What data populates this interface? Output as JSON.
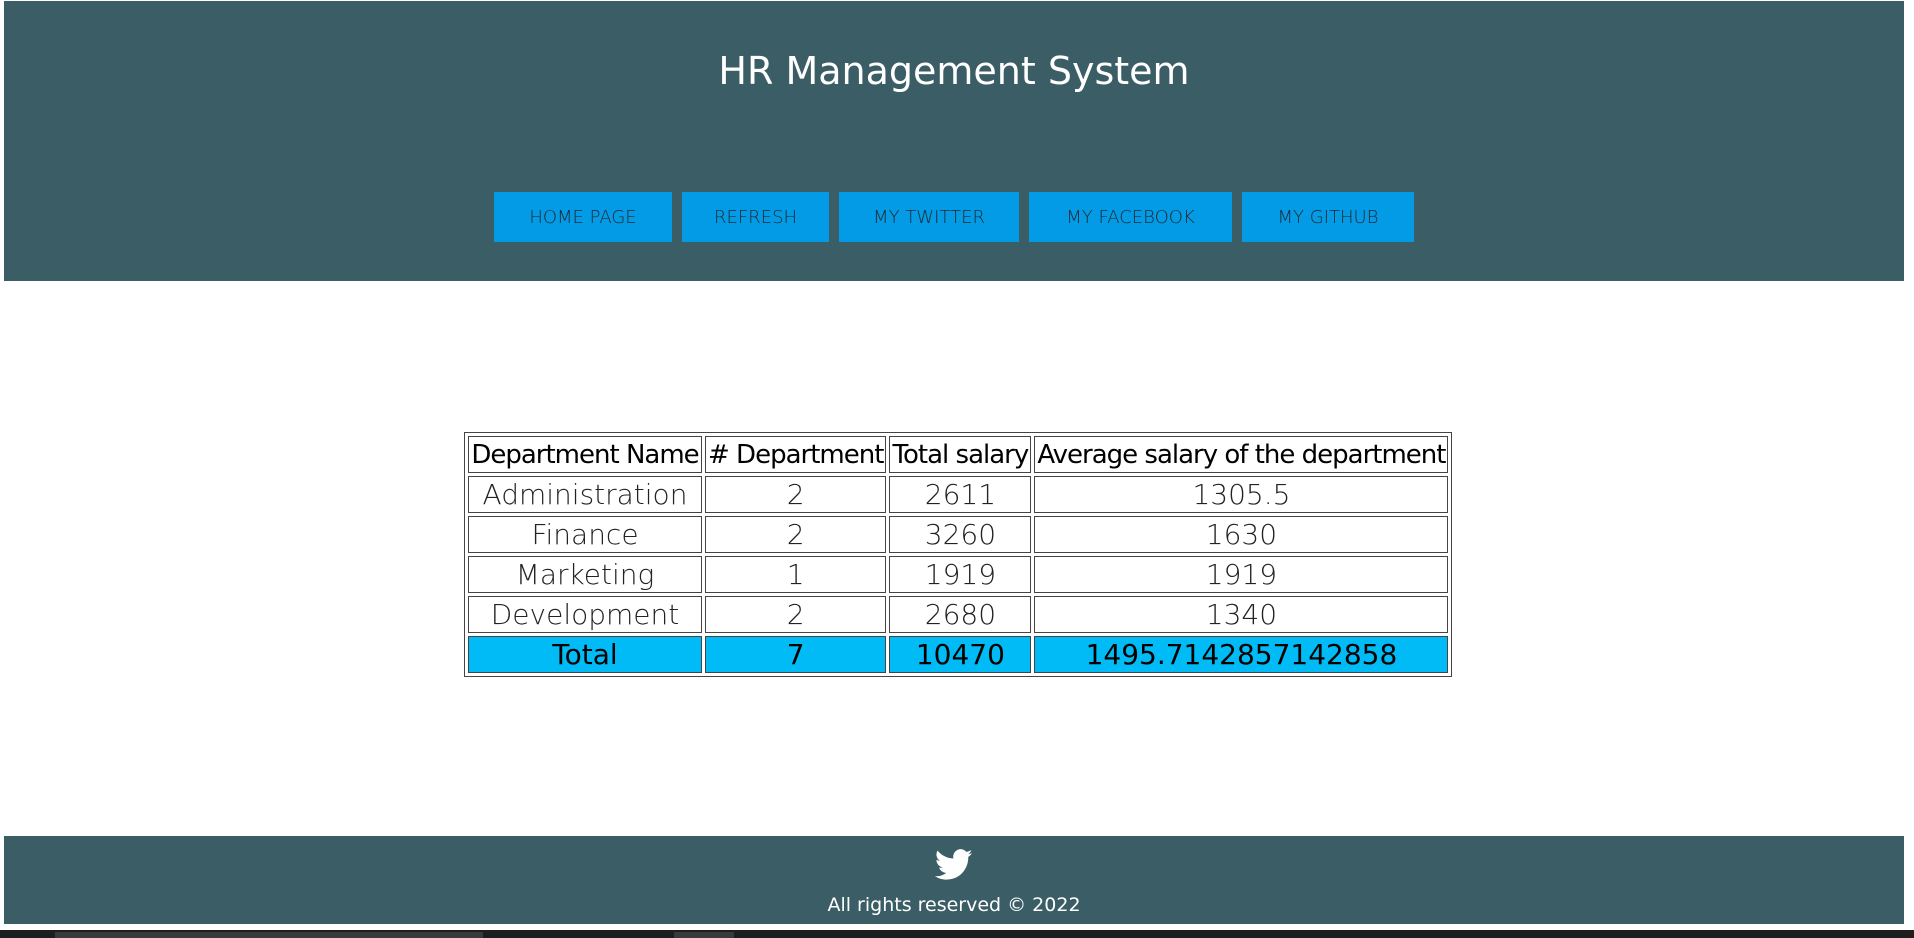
{
  "header": {
    "title": "HR Management System",
    "nav": [
      {
        "label": "HOME PAGE"
      },
      {
        "label": "REFRESH"
      },
      {
        "label": "MY TWITTER"
      },
      {
        "label": "MY FACEBOOK"
      },
      {
        "label": "MY GITHUB"
      }
    ]
  },
  "table": {
    "headers": [
      "Department Name",
      "# Department",
      "Total salary",
      "Average salary of the department"
    ],
    "rows": [
      [
        "Administration",
        "2",
        "2611",
        "1305.5"
      ],
      [
        "Finance",
        "2",
        "3260",
        "1630"
      ],
      [
        "Marketing",
        "1",
        "1919",
        "1919"
      ],
      [
        "Development",
        "2",
        "2680",
        "1340"
      ]
    ],
    "total": [
      "Total",
      "7",
      "10470",
      "1495.7142857142858"
    ]
  },
  "footer": {
    "icon": "twitter-icon",
    "copyright": "All rights reserved © 2022"
  },
  "colors": {
    "header_bg": "#3b5d66",
    "nav_button": "#039be5",
    "total_row": "#00bbf5"
  }
}
